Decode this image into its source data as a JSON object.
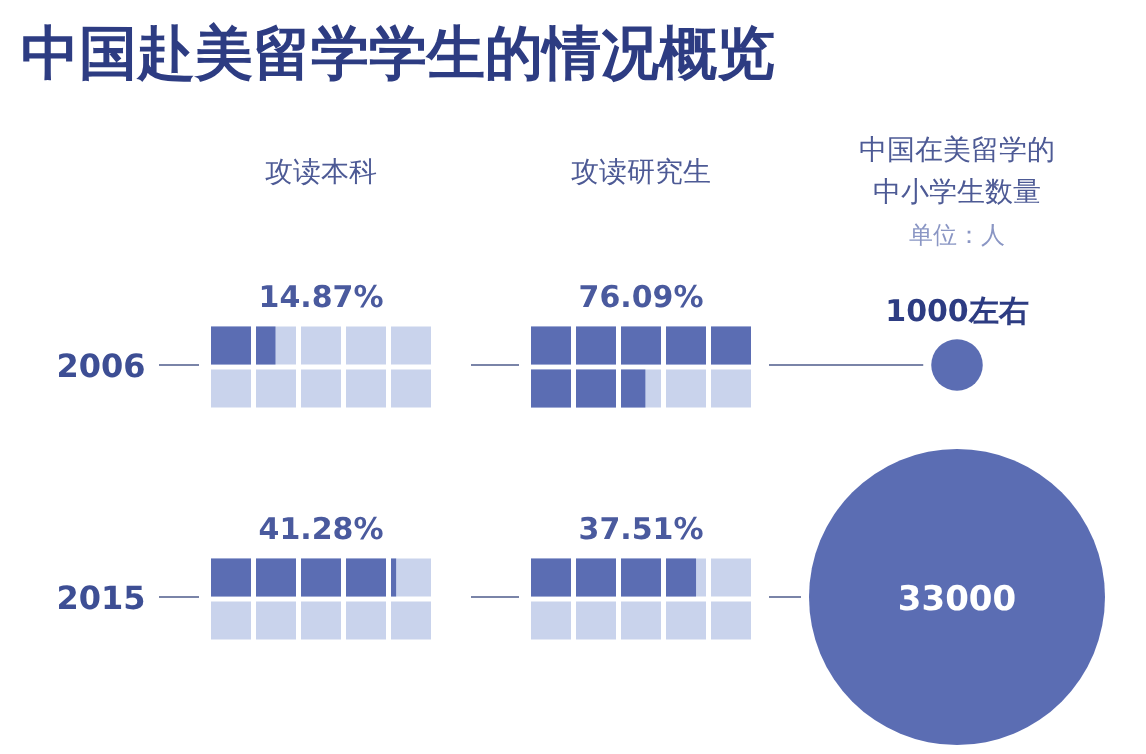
{
  "chart_data": {
    "type": "other",
    "title": "中国赴美留学学生的情况概览",
    "categories": [
      "2006",
      "2015"
    ],
    "series": [
      {
        "type": "bar",
        "name": "攻读本科",
        "color": "#5b6db3",
        "values": [
          14.87,
          41.28
        ],
        "value_labels": [
          "14.87%",
          "41.28%"
        ]
      },
      {
        "type": "bar",
        "name": "攻读研究生",
        "color": "#5b6db3",
        "values": [
          76.09,
          37.51
        ],
        "value_labels": [
          "76.09%",
          "37.51%"
        ]
      },
      {
        "type": "bubble",
        "name": "中国在美留学的中小学生数量",
        "color": "#5b6db3",
        "values": [
          1000,
          33000
        ],
        "value_labels": [
          "1000左右",
          "33000"
        ]
      }
    ],
    "annotations": [
      "单位：人"
    ]
  }
}
